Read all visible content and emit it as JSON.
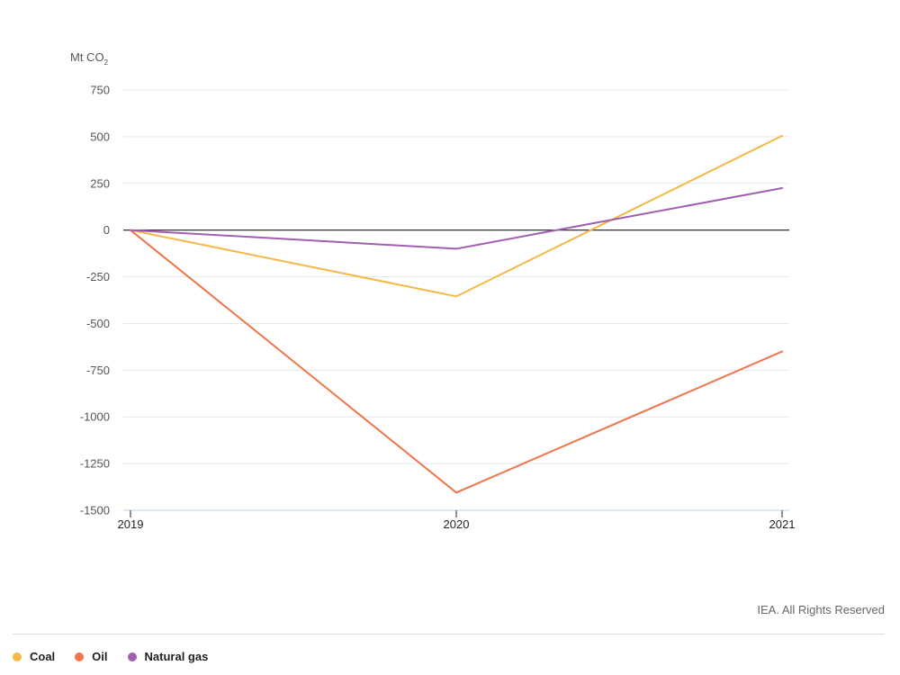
{
  "chart_data": {
    "type": "line",
    "unit_label": "Mt CO",
    "unit_subscript": "2",
    "x": [
      "2019",
      "2020",
      "2021"
    ],
    "series": [
      {
        "name": "Coal",
        "values": [
          0,
          -355,
          505
        ],
        "color": "#f6b844"
      },
      {
        "name": "Oil",
        "values": [
          0,
          -1405,
          -650
        ],
        "color": "#f0754a"
      },
      {
        "name": "Natural gas",
        "values": [
          0,
          -100,
          225
        ],
        "color": "#a25fb1"
      }
    ],
    "ylim": [
      -1500,
      750
    ],
    "y_ticks": [
      750,
      500,
      250,
      0,
      -250,
      -500,
      -750,
      -1000,
      -1250,
      -1500
    ],
    "grid": true,
    "zero_line": true,
    "legend_position": "bottom-left"
  },
  "credit": "IEA. All Rights Reserved",
  "colors": {
    "grid": "#e3e8ee",
    "zero_line": "#1a1a1a",
    "baseline": "#b8d2ea"
  }
}
